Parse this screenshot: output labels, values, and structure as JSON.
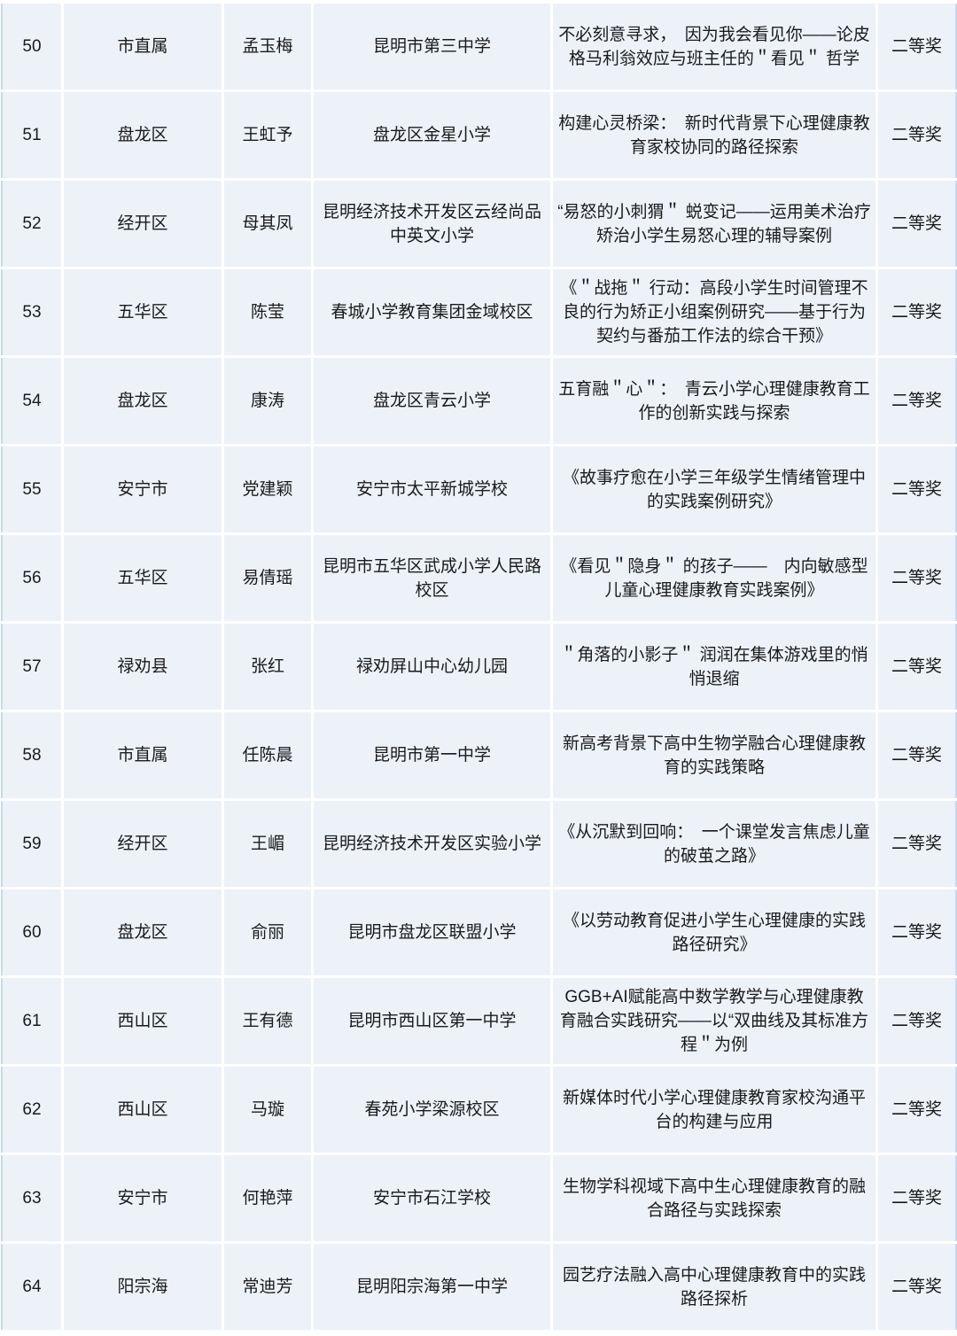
{
  "rows": [
    {
      "no": "50",
      "district": "市直属",
      "name": "孟玉梅",
      "school": "昆明市第三中学",
      "title": "不必刻意寻求，　因为我会看见你——论皮格马利翁效应与班主任的＂看见＂ 哲学",
      "award": "二等奖"
    },
    {
      "no": "51",
      "district": "盘龙区",
      "name": "王虹予",
      "school": "盘龙区金星小学",
      "title": "构建心灵桥梁：　新时代背景下心理健康教育家校协同的路径探索",
      "award": "二等奖"
    },
    {
      "no": "52",
      "district": "经开区",
      "name": "母其凤",
      "school": "昆明经济技术开发区云经尚品中英文小学",
      "title": "“易怒的小刺猬＂ 蜕变记——运用美术治疗矫治小学生易怒心理的辅导案例",
      "award": "二等奖"
    },
    {
      "no": "53",
      "district": "五华区",
      "name": "陈莹",
      "school": "春城小学教育集团金域校区",
      "title": "《＂战拖＂ 行动：高段小学生时间管理不良的行为矫正小组案例研究——基于行为契约与番茄工作法的综合干预》",
      "award": "二等奖"
    },
    {
      "no": "54",
      "district": "盘龙区",
      "name": "康涛",
      "school": "盘龙区青云小学",
      "title": "五育融＂心＂：　青云小学心理健康教育工作的创新实践与探索",
      "award": "二等奖"
    },
    {
      "no": "55",
      "district": "安宁市",
      "name": "党建颖",
      "school": "安宁市太平新城学校",
      "title": "《故事疗愈在小学三年级学生情绪管理中的实践案例研究》",
      "award": "二等奖"
    },
    {
      "no": "56",
      "district": "五华区",
      "name": "易倩瑶",
      "school": "昆明市五华区武成小学人民路校区",
      "title": "《看见＂隐身＂ 的孩子——　内向敏感型儿童心理健康教育实践案例》",
      "award": "二等奖"
    },
    {
      "no": "57",
      "district": "禄劝县",
      "name": "张红",
      "school": "禄劝屏山中心幼儿园",
      "title": "＂角落的小影子＂ 润润在集体游戏里的悄悄退缩",
      "award": "二等奖"
    },
    {
      "no": "58",
      "district": "市直属",
      "name": "任陈晨",
      "school": "昆明市第一中学",
      "title": "新高考背景下高中生物学融合心理健康教育的实践策略",
      "award": "二等奖"
    },
    {
      "no": "59",
      "district": "经开区",
      "name": "王嵋",
      "school": "昆明经济技术开发区实验小学",
      "title": "《从沉默到回响：　一个课堂发言焦虑儿童的破茧之路》",
      "award": "二等奖"
    },
    {
      "no": "60",
      "district": "盘龙区",
      "name": "俞丽",
      "school": "昆明市盘龙区联盟小学",
      "title": "《以劳动教育促进小学生心理健康的实践路径研究》",
      "award": "二等奖"
    },
    {
      "no": "61",
      "district": "西山区",
      "name": "王有德",
      "school": "昆明市西山区第一中学",
      "title": "GGB+AI赋能高中数学教学与心理健康教育融合实践研究——以“双曲线及其标准方程＂为例",
      "award": "二等奖"
    },
    {
      "no": "62",
      "district": "西山区",
      "name": "马璇",
      "school": "春苑小学梁源校区",
      "title": "新媒体时代小学心理健康教育家校沟通平台的构建与应用",
      "award": "二等奖"
    },
    {
      "no": "63",
      "district": "安宁市",
      "name": "何艳萍",
      "school": "安宁市石江学校",
      "title": "生物学科视域下高中生心理健康教育的融合路径与实践探索",
      "award": "二等奖"
    },
    {
      "no": "64",
      "district": "阳宗海",
      "name": "常迪芳",
      "school": "昆明阳宗海第一中学",
      "title": "园艺疗法融入高中心理健康教育中的实践路径探析",
      "award": "二等奖"
    }
  ],
  "colors": {
    "cell_bg": "#edf2f9",
    "grid": "#ffffff",
    "edge": "#c9d9ec"
  }
}
